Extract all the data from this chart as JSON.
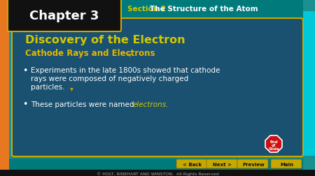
{
  "title": "Chapter 3",
  "section_label": "Section 2",
  "section_title": "The Structure of the Atom",
  "slide_title": "Discovery of the Electron",
  "subtitle": "Cathode Rays and Electrons",
  "bullet1_line1": "Experiments in the late 1800s showed that cathode",
  "bullet1_line2": "rays were composed of negatively charged",
  "bullet1_line3": "particles.",
  "bullet2_normal": "These particles were named ",
  "bullet2_italic": "electrons.",
  "footer": "© HOLT, RINEHART AND WINSTON.  All Rights Reserved",
  "nav_buttons": [
    [
      "< Back",
      275
    ],
    [
      "Next >",
      318
    ],
    [
      "Preview",
      362
    ],
    [
      "Main",
      410
    ]
  ],
  "bg_outer": "#1a9090",
  "color_yellow": "#d4c800",
  "color_white": "#ffffff",
  "color_orange": "#e87820",
  "footer_bg": "#111111"
}
